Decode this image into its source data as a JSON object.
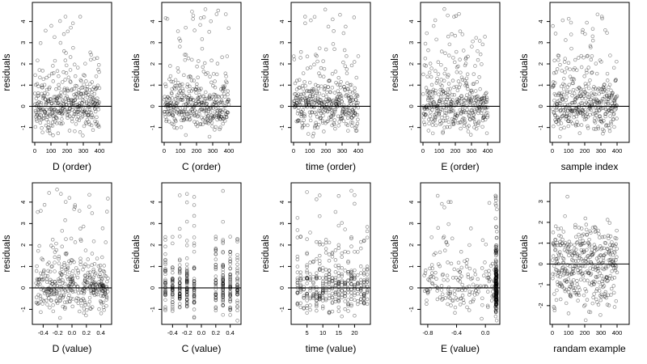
{
  "chart_data": [
    {
      "type": "scatter",
      "xlabel": "D (order)",
      "ylabel": "residuals",
      "xlim": [
        -15,
        475
      ],
      "ylim": [
        -1.7,
        4.9
      ],
      "xticks": [
        0,
        100,
        200,
        300,
        400
      ],
      "xtick_labels": [
        "0",
        "100",
        "200",
        "300",
        "400"
      ],
      "yticks": [
        -1,
        0,
        1,
        2,
        3,
        4
      ],
      "ytick_labels": [
        "-1",
        "0",
        "1",
        "2",
        "3",
        "4"
      ],
      "hline": 0,
      "n_points": 400,
      "pattern": "order",
      "seed": 11
    },
    {
      "type": "scatter",
      "xlabel": "C (order)",
      "ylabel": "residuals",
      "xlim": [
        -15,
        475
      ],
      "ylim": [
        -1.7,
        4.9
      ],
      "xticks": [
        0,
        100,
        200,
        300,
        400
      ],
      "xtick_labels": [
        "0",
        "100",
        "200",
        "300",
        "400"
      ],
      "yticks": [
        -1,
        0,
        1,
        2,
        3,
        4
      ],
      "ytick_labels": [
        "-1",
        "0",
        "1",
        "2",
        "3",
        "4"
      ],
      "hline": 0,
      "n_points": 400,
      "pattern": "order",
      "seed": 23
    },
    {
      "type": "scatter",
      "xlabel": "time (order)",
      "ylabel": "residuals",
      "xlim": [
        -15,
        475
      ],
      "ylim": [
        -1.7,
        4.9
      ],
      "xticks": [
        0,
        100,
        200,
        300,
        400
      ],
      "xtick_labels": [
        "0",
        "100",
        "200",
        "300",
        "400"
      ],
      "yticks": [
        -1,
        0,
        1,
        2,
        3,
        4
      ],
      "ytick_labels": [
        "-1",
        "0",
        "1",
        "2",
        "3",
        "4"
      ],
      "hline": 0,
      "n_points": 400,
      "pattern": "order",
      "seed": 37
    },
    {
      "type": "scatter",
      "xlabel": "E (order)",
      "ylabel": "residuals",
      "xlim": [
        -15,
        475
      ],
      "ylim": [
        -1.7,
        4.9
      ],
      "xticks": [
        0,
        100,
        200,
        300,
        400
      ],
      "xtick_labels": [
        "0",
        "100",
        "200",
        "300",
        "400"
      ],
      "yticks": [
        -1,
        0,
        1,
        2,
        3,
        4
      ],
      "ytick_labels": [
        "-1",
        "0",
        "1",
        "2",
        "3",
        "4"
      ],
      "hline": 0,
      "n_points": 400,
      "pattern": "order",
      "seed": 41
    },
    {
      "type": "scatter",
      "xlabel": "sample index",
      "ylabel": "residuals",
      "xlim": [
        -15,
        475
      ],
      "ylim": [
        -1.7,
        4.9
      ],
      "xticks": [
        0,
        100,
        200,
        300,
        400
      ],
      "xtick_labels": [
        "0",
        "100",
        "200",
        "300",
        "400"
      ],
      "yticks": [
        -1,
        0,
        1,
        2,
        3,
        4
      ],
      "ytick_labels": [
        "-1",
        "0",
        "1",
        "2",
        "3",
        "4"
      ],
      "hline": 0,
      "n_points": 400,
      "pattern": "order",
      "seed": 53
    },
    {
      "type": "scatter",
      "xlabel": "D (value)",
      "ylabel": "residuals",
      "xlim": [
        -0.55,
        0.55
      ],
      "ylim": [
        -1.7,
        4.9
      ],
      "xticks": [
        -0.4,
        -0.2,
        0,
        0.2,
        0.4
      ],
      "xtick_labels": [
        "-0.4",
        "-0.2",
        "0.0",
        "0.2",
        "0.4"
      ],
      "yticks": [
        -1,
        0,
        1,
        2,
        3,
        4
      ],
      "ytick_labels": [
        "-1",
        "0",
        "1",
        "2",
        "3",
        "4"
      ],
      "hline": 0,
      "n_points": 400,
      "pattern": "uniform",
      "seed": 61
    },
    {
      "type": "scatter",
      "xlabel": "C (value)",
      "ylabel": "residuals",
      "xlim": [
        -0.55,
        0.55
      ],
      "ylim": [
        -1.7,
        4.9
      ],
      "xticks": [
        -0.4,
        -0.2,
        0,
        0.2,
        0.4
      ],
      "xtick_labels": [
        "-0.4",
        "-0.2",
        "0.0",
        "0.2",
        "0.4"
      ],
      "yticks": [
        -1,
        0,
        1,
        2,
        3,
        4
      ],
      "ytick_labels": [
        "-1",
        "0",
        "1",
        "2",
        "3",
        "4"
      ],
      "hline": 0,
      "n_points": 400,
      "pattern": "columns",
      "columns": [
        -0.5,
        -0.4,
        -0.3,
        -0.2,
        -0.1,
        0.2,
        0.3,
        0.4,
        0.5
      ],
      "seed": 71
    },
    {
      "type": "scatter",
      "xlabel": "time (value)",
      "ylabel": "residuals",
      "xlim": [
        0,
        25
      ],
      "ylim": [
        -1.7,
        4.9
      ],
      "xticks": [
        5,
        10,
        15,
        20
      ],
      "xtick_labels": [
        "5",
        "10",
        "15",
        "20"
      ],
      "yticks": [
        -1,
        0,
        1,
        2,
        3,
        4
      ],
      "ytick_labels": [
        "-1",
        "0",
        "1",
        "2",
        "3",
        "4"
      ],
      "hline": 0,
      "n_points": 400,
      "pattern": "columns",
      "columns": [
        2,
        3,
        4,
        5,
        6,
        7,
        8,
        9,
        10,
        11,
        12,
        13,
        14,
        15,
        16,
        17,
        18,
        19,
        20,
        21,
        22,
        23,
        24
      ],
      "seed": 83
    },
    {
      "type": "scatter",
      "xlabel": "E (value)",
      "ylabel": "residuals",
      "xlim": [
        -0.9,
        0.2
      ],
      "ylim": [
        -1.7,
        4.9
      ],
      "xticks": [
        -0.8,
        -0.4,
        0
      ],
      "xtick_labels": [
        "-0.8",
        "-0.4",
        "0.0"
      ],
      "yticks": [
        -1,
        0,
        1,
        2,
        3,
        4
      ],
      "ytick_labels": [
        "-1",
        "0",
        "1",
        "2",
        "3",
        "4"
      ],
      "hline": 0,
      "n_points": 400,
      "pattern": "edge_cluster",
      "cluster_x": 0.15,
      "seed": 97
    },
    {
      "type": "scatter",
      "xlabel": "randam example",
      "ylabel": "residuals",
      "xlim": [
        -15,
        475
      ],
      "ylim": [
        -2.9,
        3.9
      ],
      "xticks": [
        0,
        100,
        200,
        300,
        400
      ],
      "xtick_labels": [
        "0",
        "100",
        "200",
        "300",
        "400"
      ],
      "yticks": [
        -2,
        -1,
        0,
        1,
        2,
        3
      ],
      "ytick_labels": [
        "-2",
        "-1",
        "0",
        "1",
        "2",
        "3"
      ],
      "hline": 0,
      "n_points": 400,
      "pattern": "normal",
      "seed": 101
    }
  ]
}
